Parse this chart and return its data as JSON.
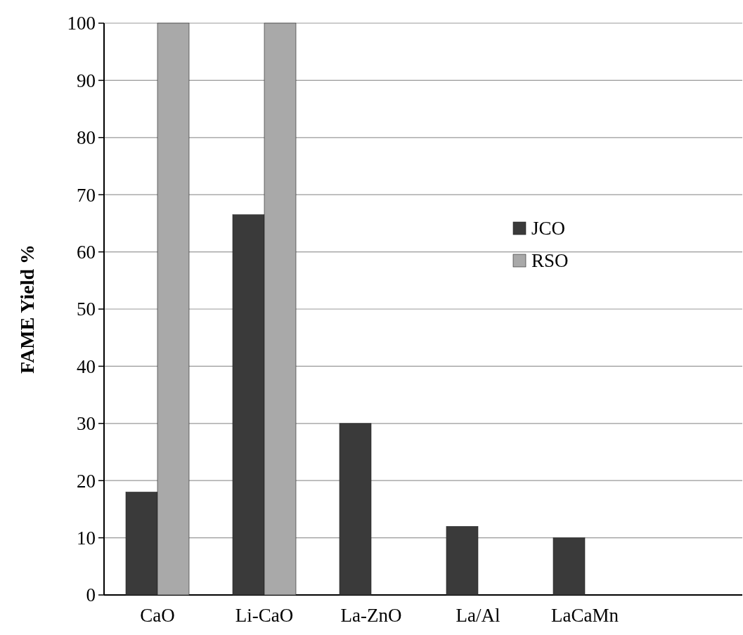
{
  "chart_data": {
    "type": "bar",
    "ylabel": "FAME Yield %",
    "categories": [
      "CaO",
      "Li-CaO",
      "La-ZnO",
      "La/Al",
      "LaCaMn"
    ],
    "series": [
      {
        "name": "JCO",
        "color": "#3a3a3a",
        "values": [
          18,
          66.5,
          30,
          12,
          10
        ]
      },
      {
        "name": "RSO",
        "color": "#a9a9a9",
        "values": [
          100,
          100,
          null,
          null,
          null
        ]
      }
    ],
    "ylim": [
      0,
      100
    ],
    "yticks": [
      0,
      10,
      20,
      30,
      40,
      50,
      60,
      70,
      80,
      90,
      100
    ],
    "grid": "y",
    "legend": "right"
  }
}
